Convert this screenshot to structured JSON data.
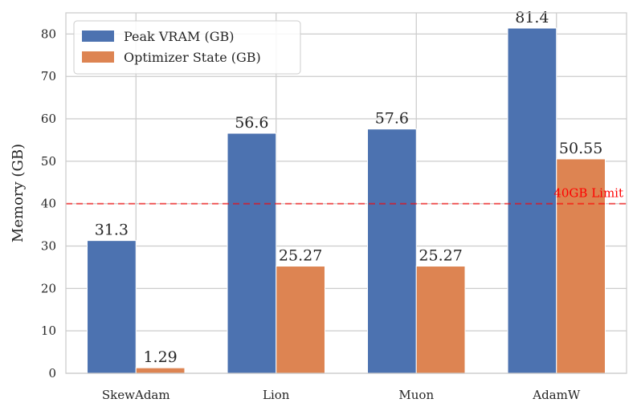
{
  "chart_data": {
    "type": "bar",
    "categories": [
      "SkewAdam",
      "Lion",
      "Muon",
      "AdamW"
    ],
    "series": [
      {
        "name": "Peak VRAM (GB)",
        "values": [
          31.3,
          56.6,
          57.6,
          81.4
        ],
        "labels": [
          "31.3",
          "56.6",
          "57.6",
          "81.4"
        ],
        "color": "#4c72b0"
      },
      {
        "name": "Optimizer State (GB)",
        "values": [
          1.29,
          25.27,
          25.27,
          50.55
        ],
        "labels": [
          "1.29",
          "25.27",
          "25.27",
          "50.55"
        ],
        "color": "#dd8452"
      }
    ],
    "title": "",
    "xlabel": "",
    "ylabel": "Memory (GB)",
    "ylim": [
      0,
      85
    ],
    "yticks": [
      0,
      10,
      20,
      30,
      40,
      50,
      60,
      70,
      80
    ],
    "grid": true,
    "legend_position": "top-left",
    "reference_line": {
      "value": 40,
      "label": "40GB Limit",
      "color": "#ff0000",
      "style": "dashed"
    }
  }
}
